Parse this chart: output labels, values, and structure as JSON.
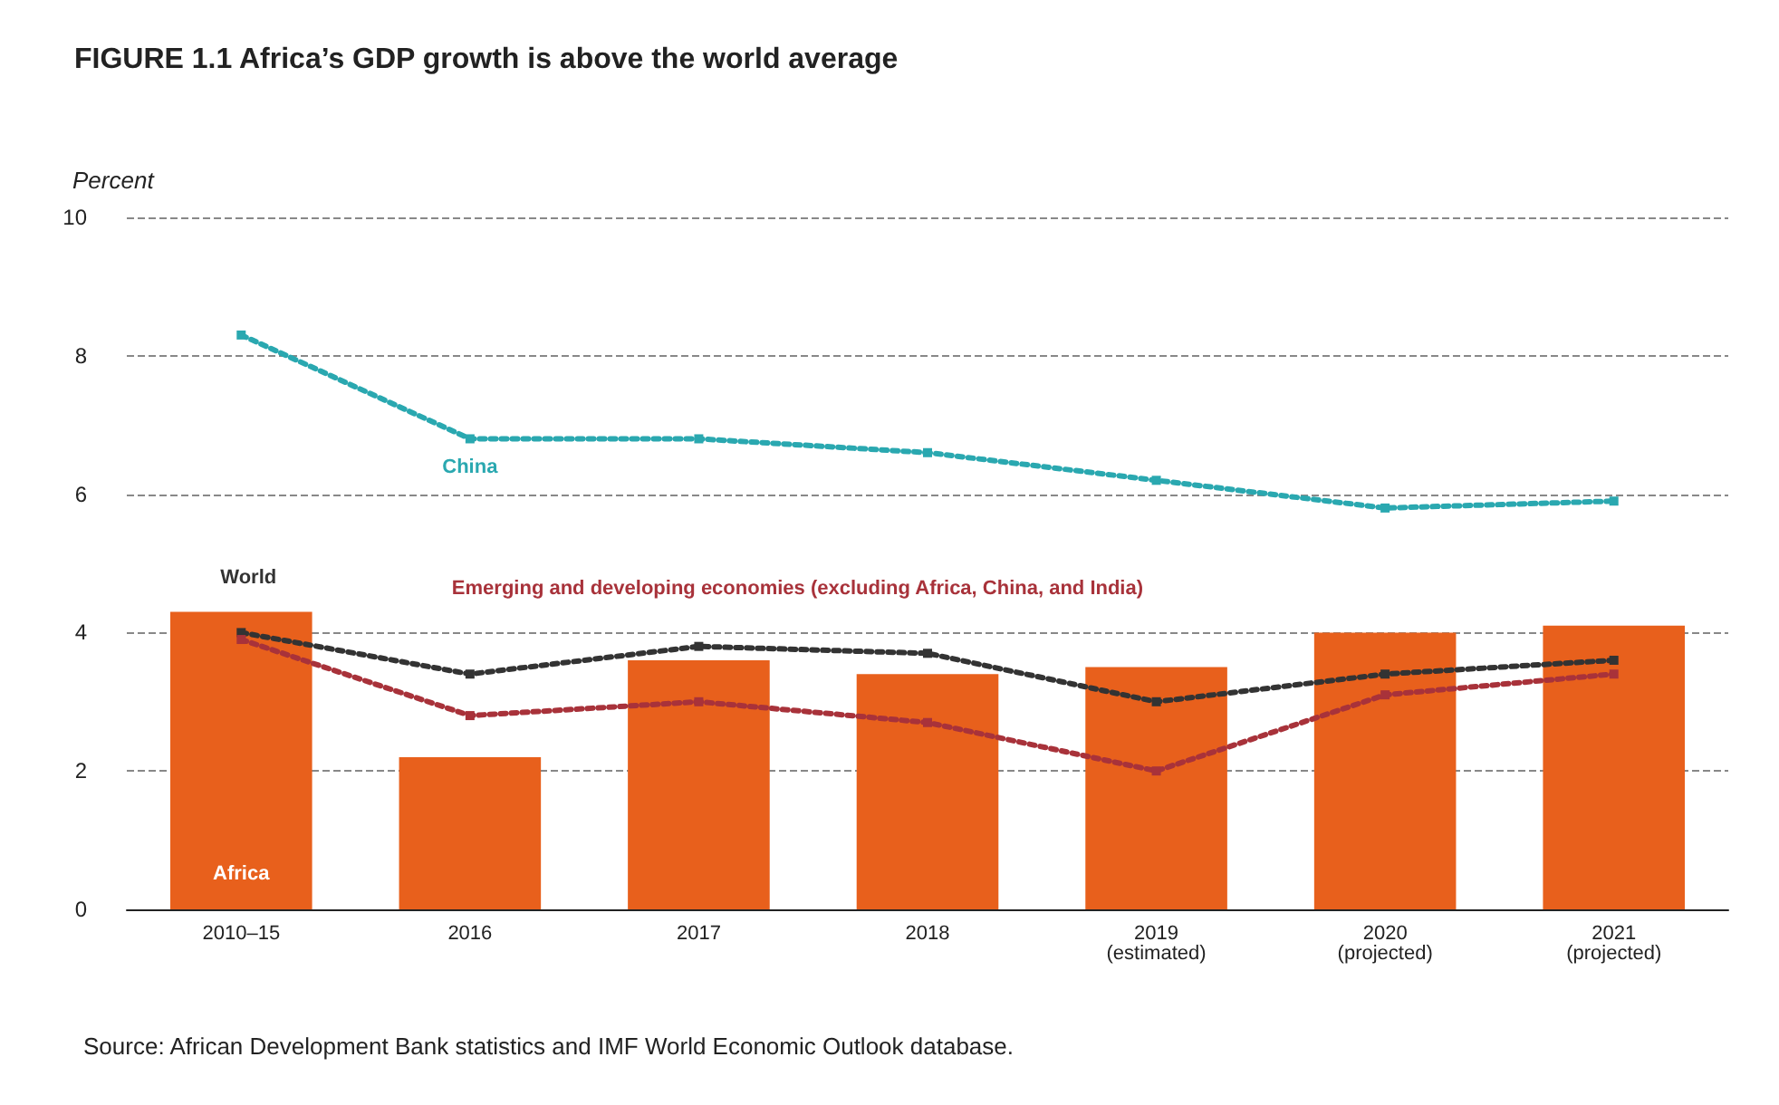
{
  "chart_data": {
    "type": "bar",
    "title": "FIGURE 1.1 Africa’s GDP growth is above the world average",
    "ylabel": "Percent",
    "categories": [
      "2010–15",
      "2016",
      "2017",
      "2018",
      "2019\n(estimated)",
      "2020\n(projected)",
      "2021\n(projected)"
    ],
    "series": [
      {
        "name": "Africa",
        "color": "#e8601c",
        "values": [
          4.3,
          2.2,
          3.6,
          3.4,
          3.5,
          4.0,
          4.1
        ]
      },
      {
        "name": "China",
        "type": "line",
        "color": "#2aa8b0",
        "values": [
          8.3,
          6.8,
          6.8,
          6.6,
          6.2,
          5.8,
          5.9
        ]
      },
      {
        "name": "World",
        "type": "line",
        "color": "#333333",
        "values": [
          4.0,
          3.4,
          3.8,
          3.7,
          3.0,
          3.4,
          3.6
        ]
      },
      {
        "name": "Emerging and developing economies (excluding Africa, China, and India)",
        "type": "line",
        "color": "#a8323a",
        "values": [
          3.9,
          2.8,
          3.0,
          2.7,
          2.0,
          3.1,
          3.4
        ]
      }
    ],
    "ylim": [
      0,
      10
    ],
    "yticks": [
      0,
      2,
      4,
      6,
      8,
      10
    ],
    "grid": "y",
    "legend": false,
    "marker": "square",
    "line_style": "dotted",
    "annotations": [
      "Source: African Development Bank statistics and IMF World Economic Outlook database."
    ]
  }
}
